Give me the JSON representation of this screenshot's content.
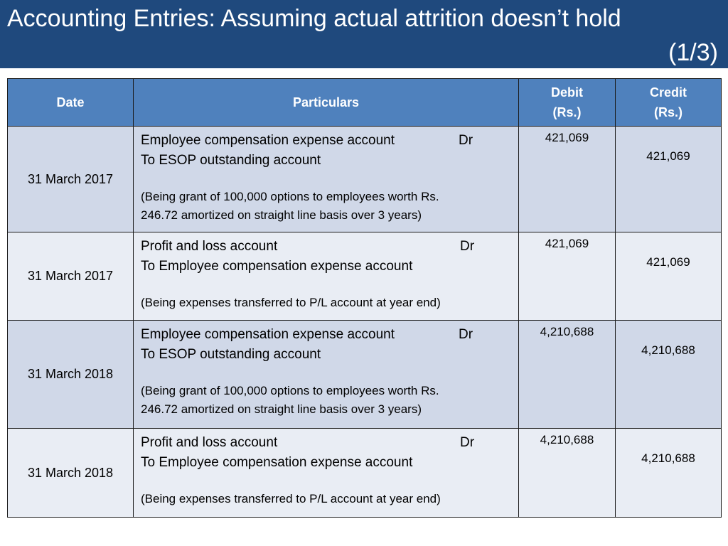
{
  "slide": {
    "title_line1": "Accounting Entries: Assuming actual attrition doesn’t hold",
    "title_line2": "(1/3)"
  },
  "table": {
    "headers": {
      "date": "Date",
      "particulars": "Particulars",
      "debit_line1": "Debit",
      "debit_line2": "(Rs.)",
      "credit_line1": "Credit",
      "credit_line2": "(Rs.)"
    },
    "rows": [
      {
        "date": "31 March 2017",
        "debit_account": "Employee compensation expense account",
        "dr": "Dr",
        "credit_account": "To ESOP outstanding account",
        "narration_line1": "(Being grant of 100,000 options to employees worth Rs.",
        "narration_line2": "246.72 amortized on straight line basis over 3 years)",
        "debit": "421,069",
        "credit": "421,069"
      },
      {
        "date": "31 March 2017",
        "debit_account": "Profit and loss account",
        "dr": "Dr",
        "credit_account": "To Employee compensation expense account",
        "narration_line1": "(Being expenses transferred to P/L account at year end)",
        "debit": "421,069",
        "credit": "421,069"
      },
      {
        "date": "31 March 2018",
        "debit_account": "Employee compensation expense account",
        "dr": "Dr",
        "credit_account": "To ESOP outstanding account",
        "narration_line1": "(Being grant of 100,000 options to employees worth Rs.",
        "narration_line2": "246.72 amortized on straight line basis over 3 years)",
        "debit": "4,210,688",
        "credit": "4,210,688"
      },
      {
        "date": "31 March 2018",
        "debit_account": "Profit and loss account",
        "dr": "Dr",
        "credit_account": "To Employee compensation expense account",
        "narration_line1": "(Being expenses transferred to P/L account at year end)",
        "debit": "4,210,688",
        "credit": "4,210,688"
      }
    ]
  },
  "colors": {
    "title_bar": "#1f497d",
    "header_row": "#4f81bd",
    "row_shade_dark": "#d0d8e8",
    "row_shade_light": "#e9edf4"
  }
}
